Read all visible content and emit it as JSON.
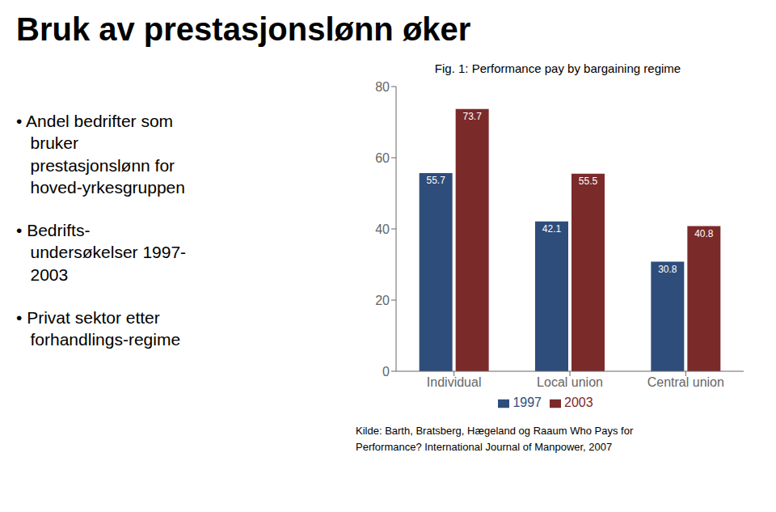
{
  "chart_data": {
    "type": "bar",
    "title": "Fig. 1: Performance pay by bargaining regime",
    "categories": [
      "Individual",
      "Local union",
      "Central union"
    ],
    "series": [
      {
        "name": "1997",
        "color": "#2e4d7b",
        "values": [
          55.7,
          42.1,
          30.8
        ]
      },
      {
        "name": "2003",
        "color": "#7b2a2a",
        "values": [
          73.7,
          55.5,
          40.8
        ]
      }
    ],
    "ylim": [
      0,
      80
    ],
    "yticks": [
      0,
      20,
      40,
      60,
      80
    ],
    "grid": false,
    "legend": "bottom",
    "data_labels": true,
    "annotations": [
      "Bruk av prestasjonslønn øker",
      "• Andel bedrifter som\n   bruker\n   prestasjonslønn for\n   hoved-yrkesgruppen",
      "• Bedrifts-\n   undersøkelser 1997-\n   2003",
      "• Privat sektor etter\n   forhandlings-regime",
      "Kilde: Barth, Bratsberg, Hægeland og Raaum Who Pays for",
      "Performance? International Journal of Manpower, 2007"
    ]
  }
}
